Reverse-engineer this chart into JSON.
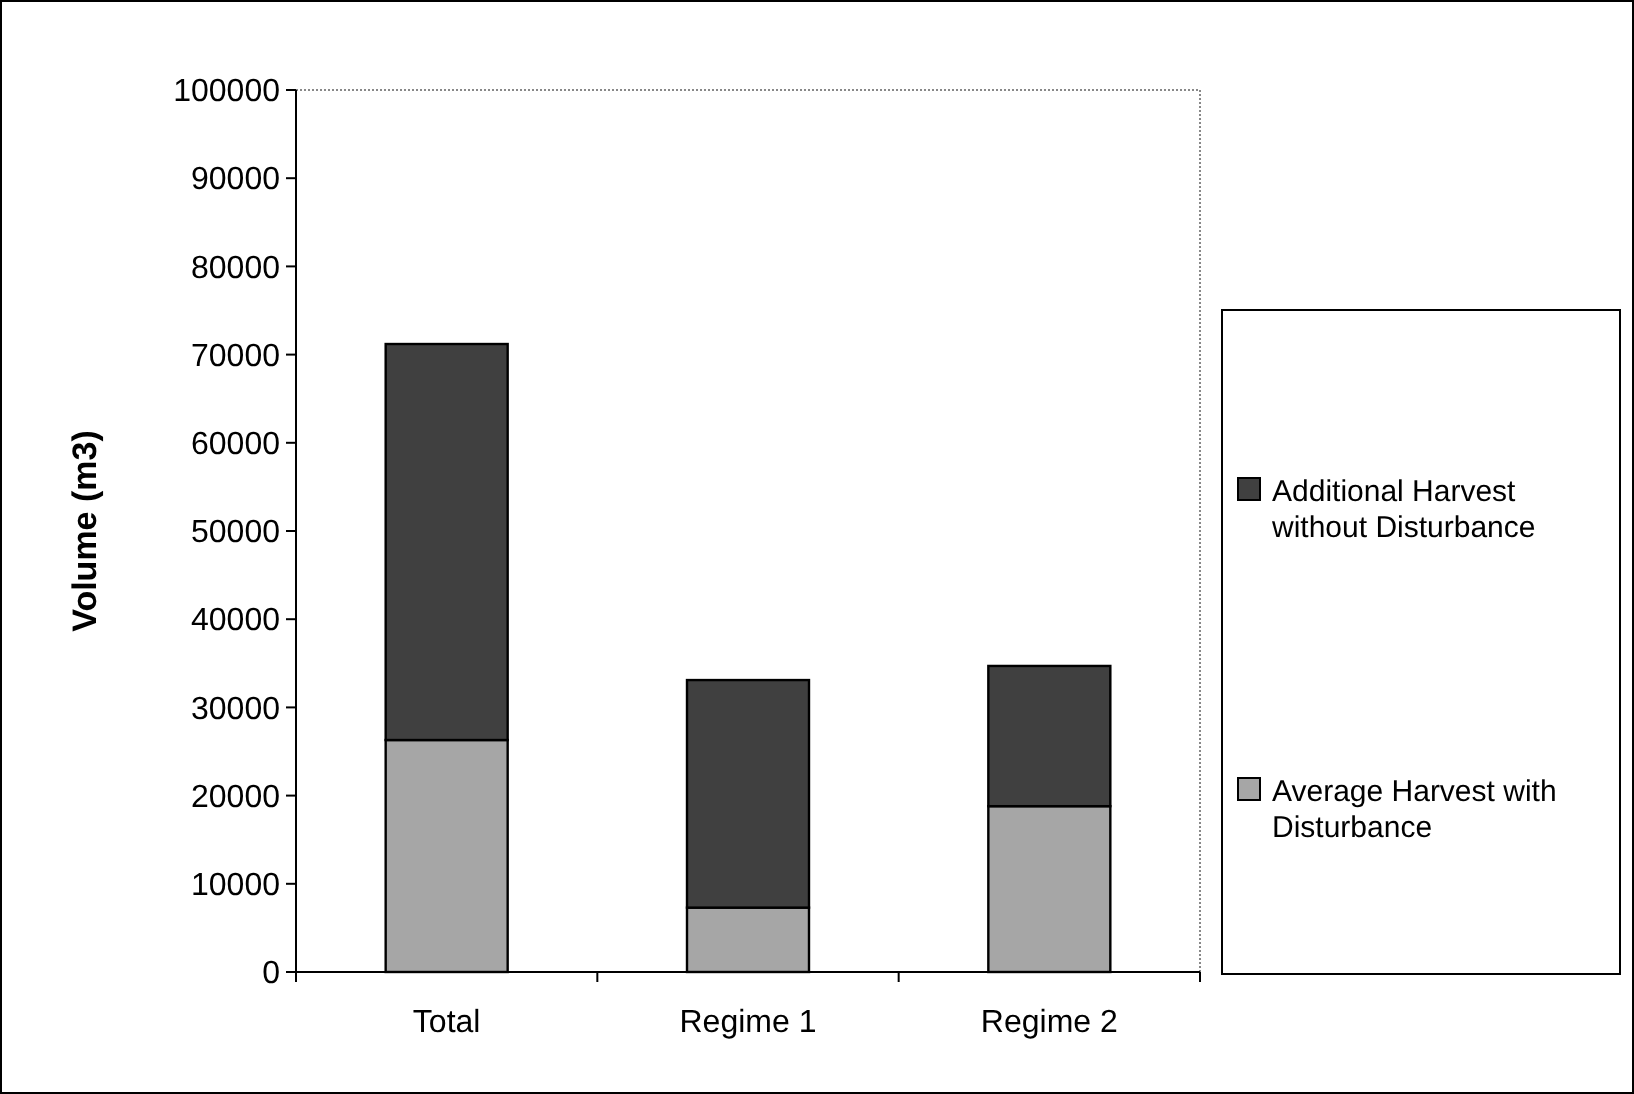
{
  "chart_data": {
    "type": "bar",
    "stacked": true,
    "ylabel": "Volume (m3)",
    "categories": [
      "Total",
      "Regime 1",
      "Regime 2"
    ],
    "series": [
      {
        "name": "Average Harvest with Disturbance",
        "color": "#a6a6a6",
        "values": [
          26300,
          7300,
          18800
        ]
      },
      {
        "name": "Additional Harvest without Disturbance",
        "color": "#404040",
        "values": [
          44900,
          25800,
          15900
        ]
      }
    ],
    "ylim": [
      0,
      100000
    ],
    "yticks": [
      0,
      10000,
      20000,
      30000,
      40000,
      50000,
      60000,
      70000,
      80000,
      90000,
      100000
    ],
    "grid": false,
    "legend": "right"
  }
}
